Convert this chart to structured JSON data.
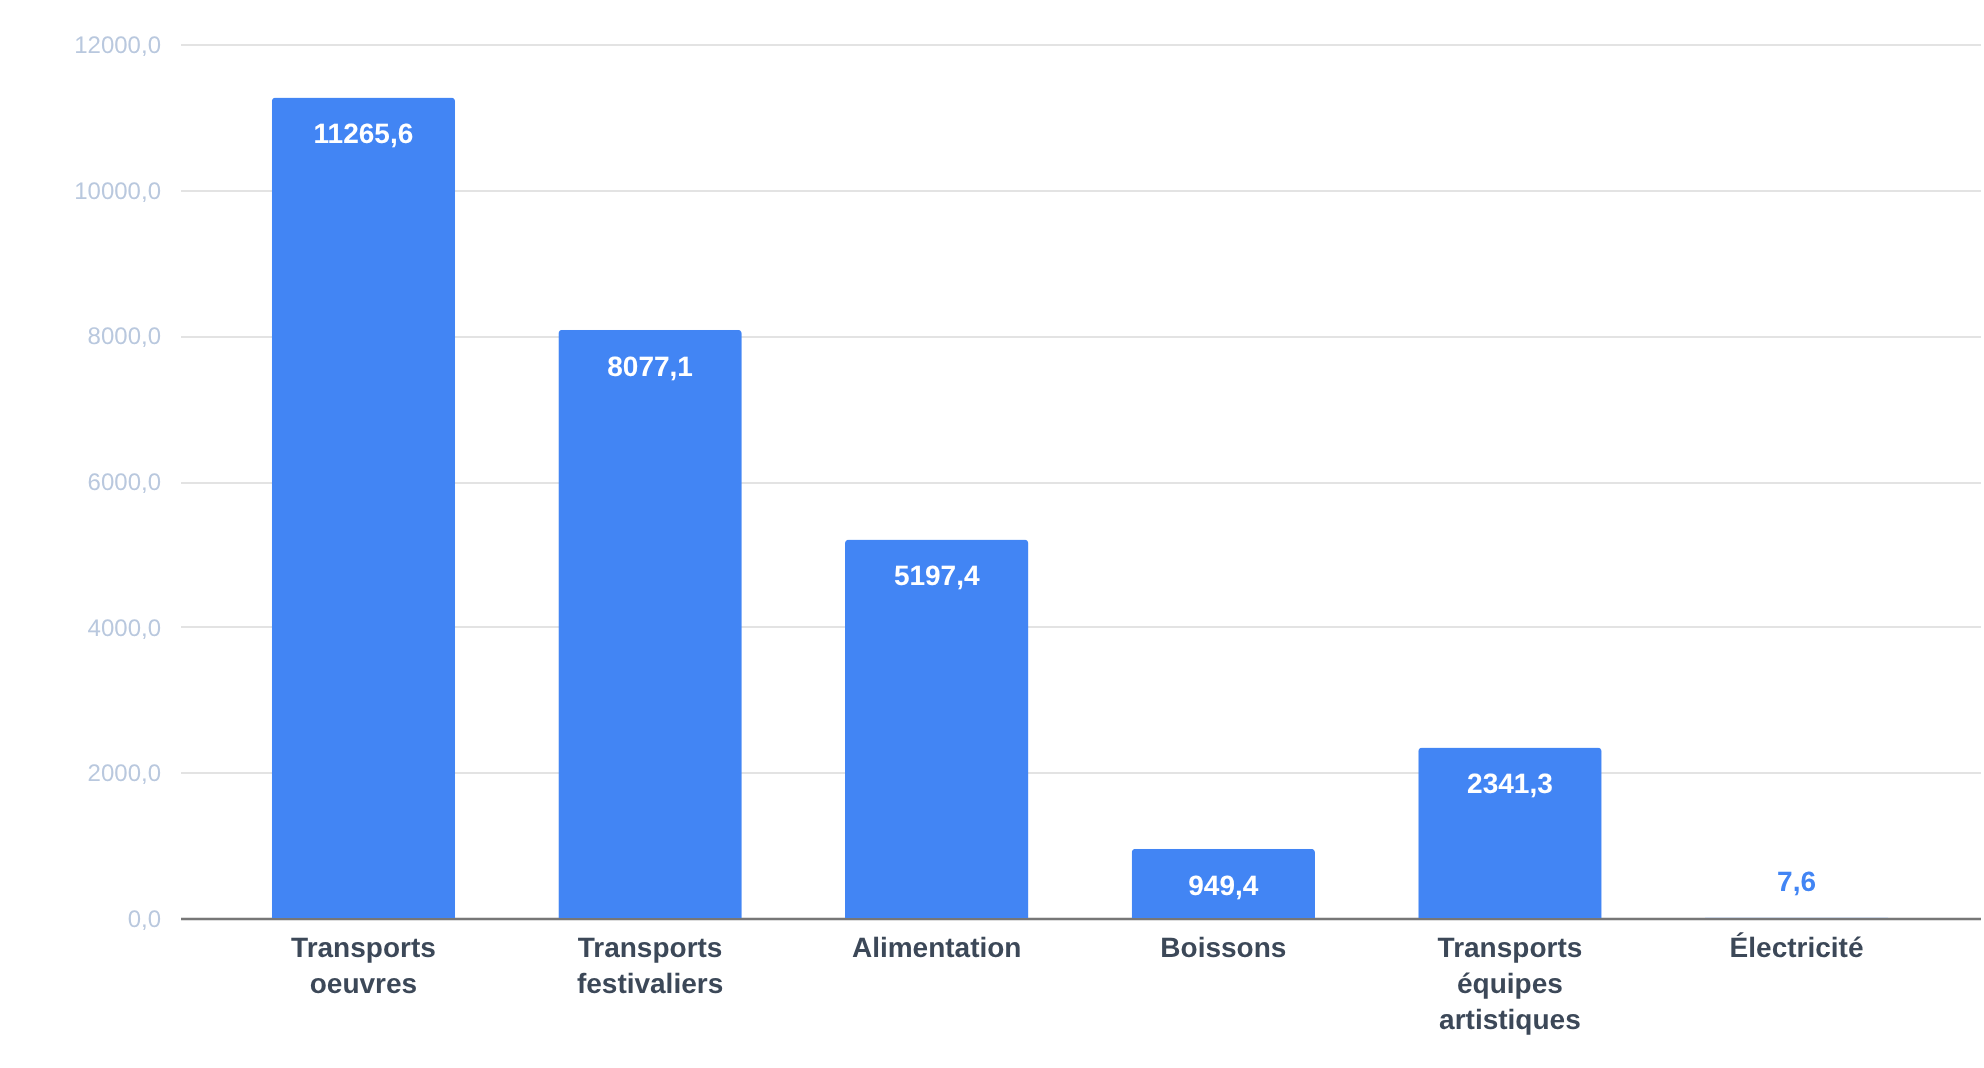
{
  "chart_data": {
    "type": "bar",
    "categories": [
      "Transports oeuvres",
      "Transports festivaliers",
      "Alimentation",
      "Boissons",
      "Transports équipes artistiques",
      "Électricité"
    ],
    "values": [
      11265.6,
      8077.1,
      5197.4,
      949.4,
      2341.3,
      7.6
    ],
    "value_labels": [
      "11265,6",
      "8077,1",
      "5197,4",
      "949,4",
      "2341,3",
      "7,6"
    ],
    "color": "#4285f4",
    "ylim": [
      0,
      12000
    ],
    "yticks": [
      {
        "value": 0,
        "label": "0,0"
      },
      {
        "value": 2000,
        "label": "2000,0"
      },
      {
        "value": 4000,
        "label": "4000,0"
      },
      {
        "value": 6000,
        "label": "6000,0"
      },
      {
        "value": 8000,
        "label": "8000,0"
      },
      {
        "value": 10000,
        "label": "10000,0"
      },
      {
        "value": 12000,
        "label": "12000,0"
      }
    ],
    "grid": "y"
  }
}
